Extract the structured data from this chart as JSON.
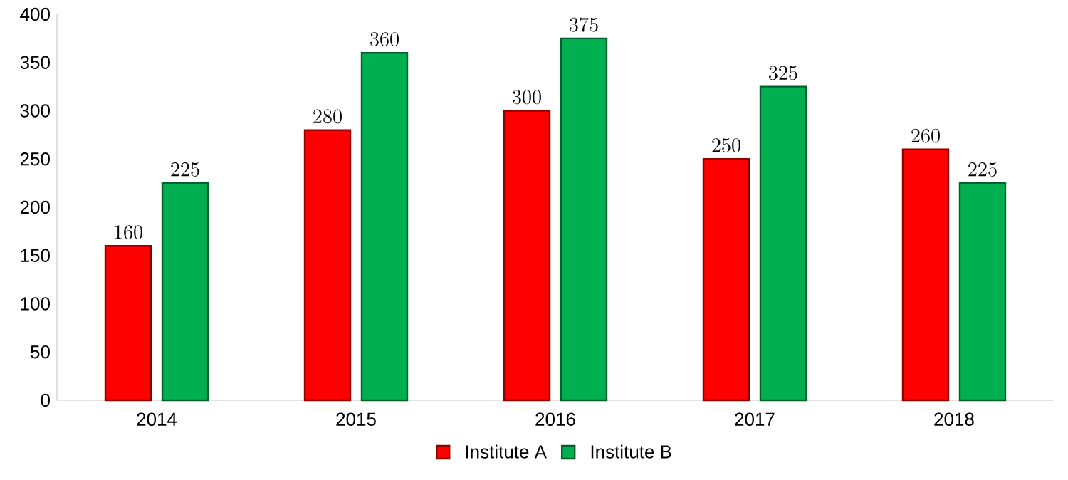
{
  "chart_data": {
    "type": "bar",
    "categories": [
      "2014",
      "2015",
      "2016",
      "2017",
      "2018"
    ],
    "series": [
      {
        "name": "Institute A",
        "color": "#ff0000",
        "values": [
          160,
          280,
          300,
          250,
          260
        ]
      },
      {
        "name": "Institute B",
        "color": "#00b050",
        "values": [
          225,
          360,
          375,
          325,
          225
        ]
      }
    ],
    "ylim": [
      0,
      400
    ],
    "yticks": [
      0,
      50,
      100,
      150,
      200,
      250,
      300,
      350,
      400
    ],
    "data_labels": true,
    "legend": "bottom",
    "grid": false
  }
}
